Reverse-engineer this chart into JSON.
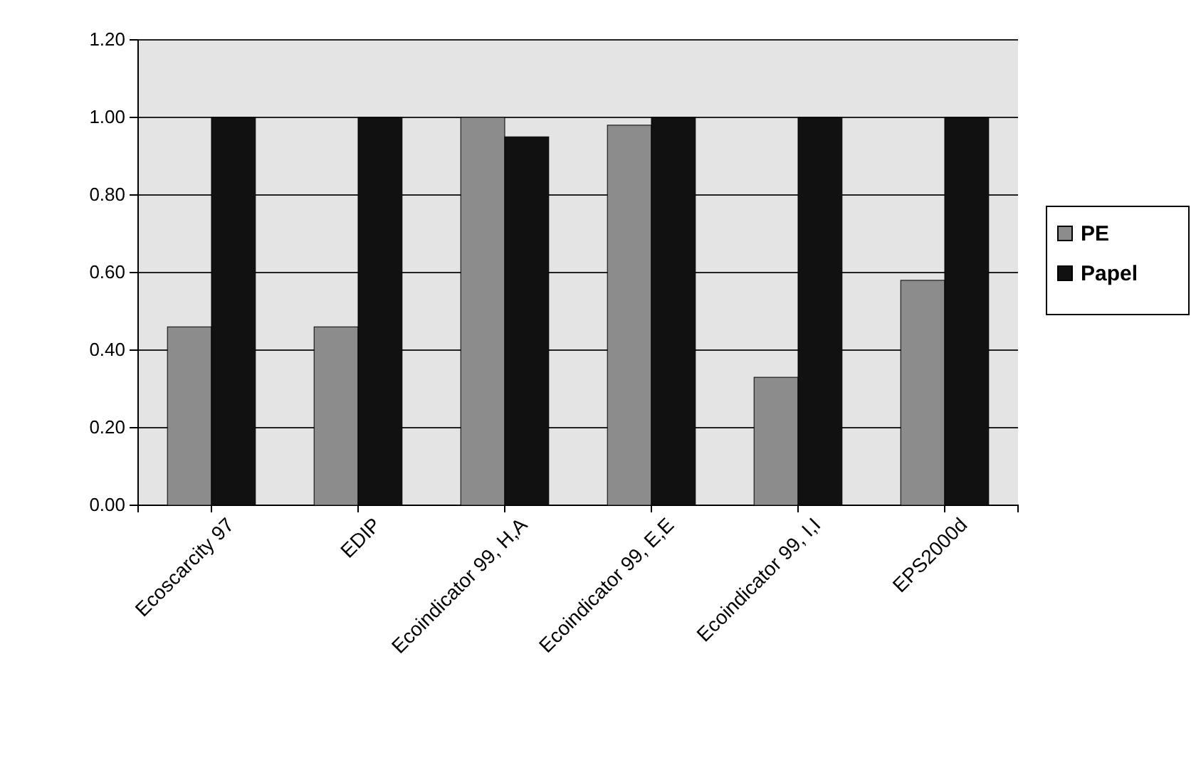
{
  "chart_data": {
    "type": "bar",
    "categories": [
      "Ecoscarcity 97",
      "EDIP",
      "Ecoindicator 99, H,A",
      "Ecoindicator 99, E,E",
      "Ecoindicator 99, I,I",
      "EPS2000d"
    ],
    "series": [
      {
        "name": "PE",
        "color": "#8c8c8c",
        "values": [
          0.46,
          0.46,
          1.0,
          0.98,
          0.33,
          0.58
        ]
      },
      {
        "name": "Papel",
        "color": "#111111",
        "values": [
          1.0,
          1.0,
          0.95,
          1.0,
          1.0,
          1.0
        ]
      }
    ],
    "ylim": [
      0,
      1.2
    ],
    "yticks": [
      {
        "value": 0,
        "label": "0.00"
      },
      {
        "value": 0.2,
        "label": "0.20"
      },
      {
        "value": 0.4,
        "label": "0.40"
      },
      {
        "value": 0.6,
        "label": "0.60"
      },
      {
        "value": 0.8,
        "label": "0.80"
      },
      {
        "value": 1.0,
        "label": "1.00"
      },
      {
        "value": 1.2,
        "label": "1.20"
      }
    ],
    "grid": "y",
    "legend": "right"
  }
}
